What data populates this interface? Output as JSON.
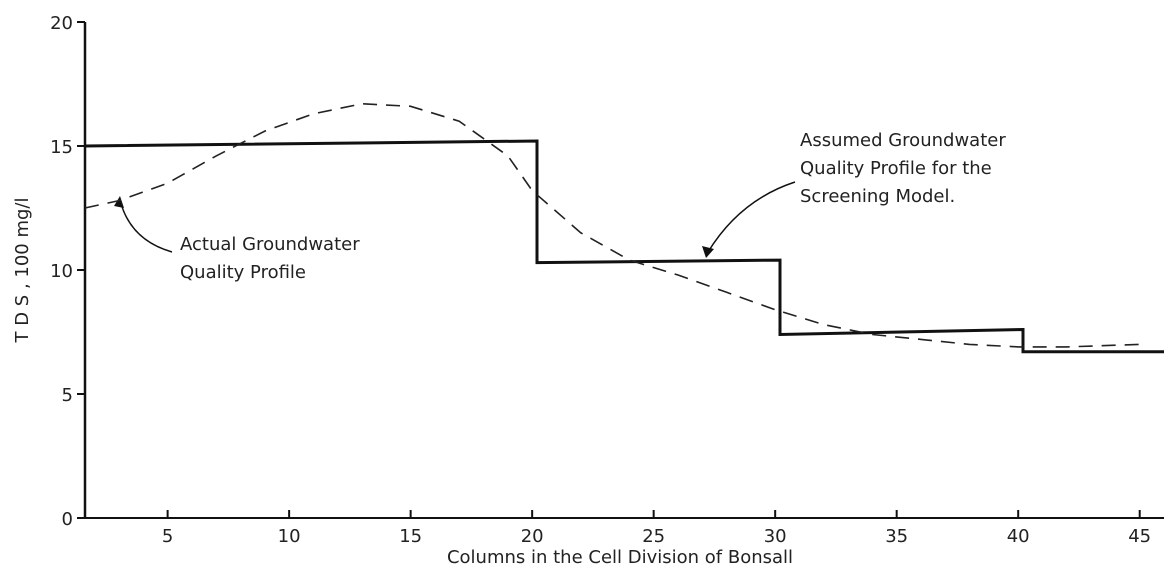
{
  "chart_data": {
    "type": "line",
    "xlabel": "Columns in the Cell Division of Bonsall",
    "ylabel": "T D S , 100 mg/l",
    "xlim": [
      1.6,
      46
    ],
    "ylim": [
      0,
      20
    ],
    "xticks": [
      5,
      10,
      15,
      20,
      25,
      30,
      35,
      40,
      45
    ],
    "yticks": [
      0,
      5,
      10,
      15,
      20
    ],
    "series": [
      {
        "color": "#111111",
        "style": "solid",
        "x": [
          1.6,
          20.2,
          20.2,
          30.2,
          30.2,
          40.2,
          40.2,
          46
        ],
        "values": [
          15,
          15.2,
          10.3,
          10.4,
          7.4,
          7.6,
          6.7,
          6.7
        ]
      },
      {
        "color": "#222222",
        "style": "dashed",
        "x": [
          1.6,
          3,
          5,
          7,
          9,
          11,
          13,
          15,
          17,
          19,
          20,
          22,
          24,
          26,
          28,
          30,
          32,
          34,
          36,
          38,
          40,
          42,
          45
        ],
        "values": [
          12.5,
          12.8,
          13.5,
          14.6,
          15.6,
          16.3,
          16.7,
          16.6,
          16,
          14.6,
          13.2,
          11.5,
          10.4,
          9.8,
          9.1,
          8.4,
          7.8,
          7.4,
          7.2,
          7.0,
          6.9,
          6.9,
          7.0
        ]
      }
    ],
    "annotations": [
      {
        "lines": [
          "Actual Groundwater",
          "Quality Profile"
        ]
      },
      {
        "lines": [
          "Assumed Groundwater",
          "Quality Profile for the",
          "Screening Model."
        ]
      }
    ]
  }
}
